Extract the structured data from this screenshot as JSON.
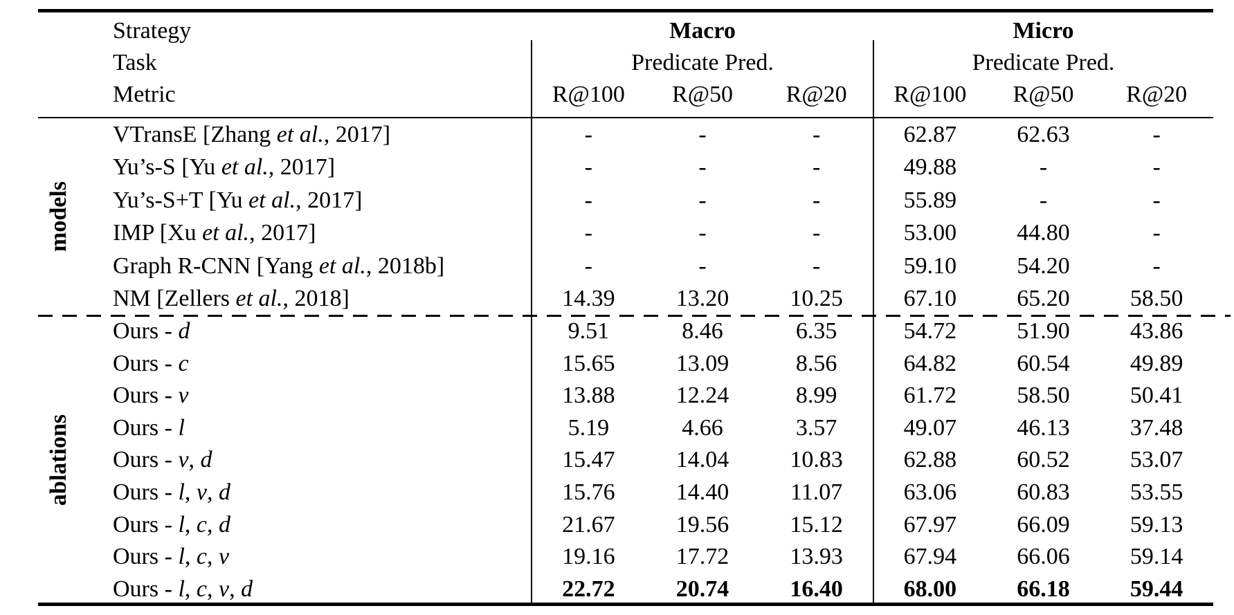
{
  "table": {
    "header": {
      "meta_labels": [
        "Strategy",
        "Task",
        "Metric"
      ],
      "groups": [
        {
          "title": "Macro",
          "subtitle": "Predicate Pred.",
          "metrics": [
            "R@100",
            "R@50",
            "R@20"
          ]
        },
        {
          "title": "Micro",
          "subtitle": "Predicate Pred.",
          "metrics": [
            "R@100",
            "R@50",
            "R@20"
          ]
        }
      ]
    },
    "sections": [
      {
        "group_label": "models",
        "rows": [
          {
            "label": "VTransE [Zhang et al., 2017]",
            "values": [
              "-",
              "-",
              "-",
              "62.87",
              "62.63",
              "-"
            ],
            "bold": false
          },
          {
            "label": "Yu’s-S [Yu et al., 2017]",
            "values": [
              "-",
              "-",
              "-",
              "49.88",
              "-",
              "-"
            ],
            "bold": false
          },
          {
            "label": "Yu’s-S+T [Yu et al., 2017]",
            "values": [
              "-",
              "-",
              "-",
              "55.89",
              "-",
              "-"
            ],
            "bold": false
          },
          {
            "label": "IMP [Xu et al., 2017]",
            "values": [
              "-",
              "-",
              "-",
              "53.00",
              "44.80",
              "-"
            ],
            "bold": false
          },
          {
            "label": "Graph R-CNN [Yang et al., 2018b]",
            "values": [
              "-",
              "-",
              "-",
              "59.10",
              "54.20",
              "-"
            ],
            "bold": false
          },
          {
            "label": "NM [Zellers et al., 2018]",
            "values": [
              "14.39",
              "13.20",
              "10.25",
              "67.10",
              "65.20",
              "58.50"
            ],
            "bold": false
          }
        ]
      },
      {
        "group_label": "ablations",
        "rows": [
          {
            "label": "Ours - d",
            "values": [
              "9.51",
              "8.46",
              "6.35",
              "54.72",
              "51.90",
              "43.86"
            ],
            "bold": false
          },
          {
            "label": "Ours - c",
            "values": [
              "15.65",
              "13.09",
              "8.56",
              "64.82",
              "60.54",
              "49.89"
            ],
            "bold": false
          },
          {
            "label": "Ours - v",
            "values": [
              "13.88",
              "12.24",
              "8.99",
              "61.72",
              "58.50",
              "50.41"
            ],
            "bold": false
          },
          {
            "label": "Ours - l",
            "values": [
              "5.19",
              "4.66",
              "3.57",
              "49.07",
              "46.13",
              "37.48"
            ],
            "bold": false
          },
          {
            "label": "Ours - v, d",
            "values": [
              "15.47",
              "14.04",
              "10.83",
              "62.88",
              "60.52",
              "53.07"
            ],
            "bold": false
          },
          {
            "label": "Ours - l, v, d",
            "values": [
              "15.76",
              "14.40",
              "11.07",
              "63.06",
              "60.83",
              "53.55"
            ],
            "bold": false
          },
          {
            "label": "Ours - l, c, d",
            "values": [
              "21.67",
              "19.56",
              "15.12",
              "67.97",
              "66.09",
              "59.13"
            ],
            "bold": false
          },
          {
            "label": "Ours - l, c, v",
            "values": [
              "19.16",
              "17.72",
              "13.93",
              "67.94",
              "66.06",
              "59.14"
            ],
            "bold": false
          },
          {
            "label": "Ours - l, c, v, d",
            "values": [
              "22.72",
              "20.74",
              "16.40",
              "68.00",
              "66.18",
              "59.44"
            ],
            "bold": true
          }
        ]
      }
    ]
  }
}
